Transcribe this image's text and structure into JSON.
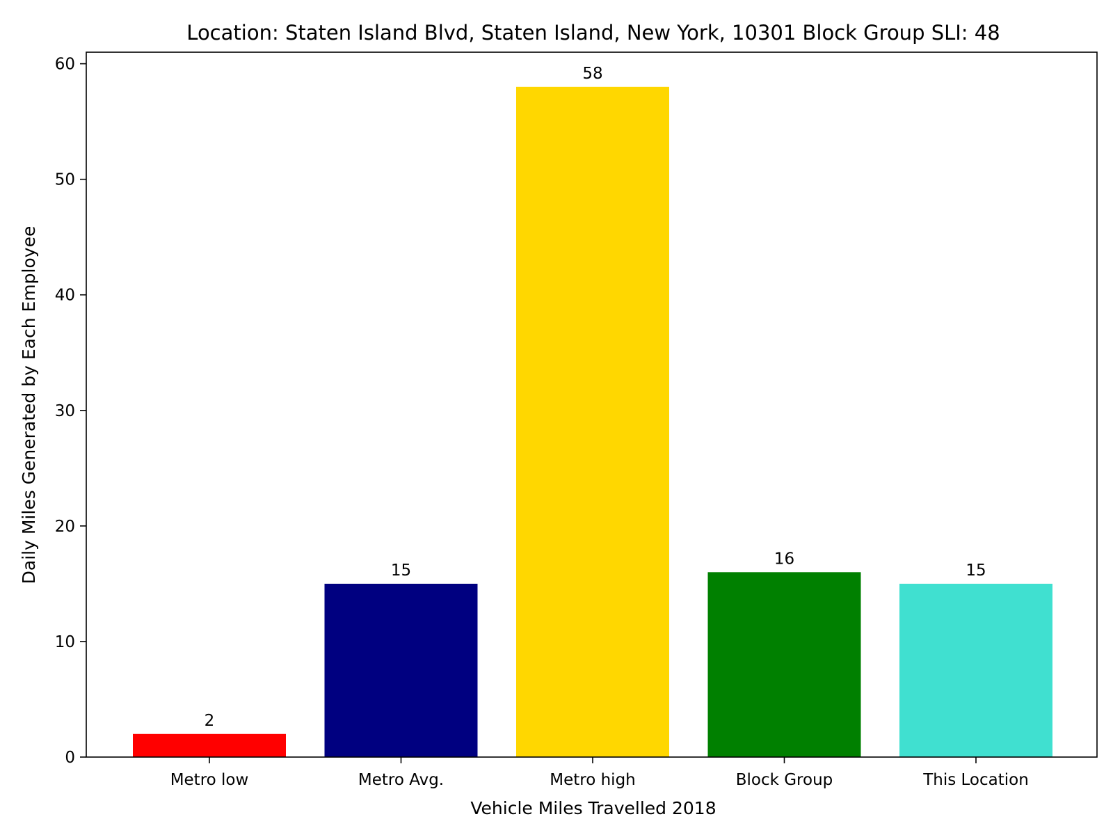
{
  "chart_data": {
    "type": "bar",
    "title": "Location: Staten Island Blvd, Staten Island, New York, 10301 Block Group SLI: 48",
    "xlabel": "Vehicle Miles Travelled 2018",
    "ylabel": "Daily Miles Generated by Each Employee",
    "categories": [
      "Metro low",
      "Metro Avg.",
      "Metro high",
      "Block Group",
      "This Location"
    ],
    "values": [
      2,
      15,
      58,
      16,
      15
    ],
    "value_labels": [
      "2",
      "15",
      "58",
      "16",
      "15"
    ],
    "colors": [
      "#ff0000",
      "#000080",
      "#ffd700",
      "#008000",
      "#40e0d0"
    ],
    "ylim": [
      0,
      61
    ],
    "yticks": [
      0,
      10,
      20,
      30,
      40,
      50,
      60
    ],
    "grid": false,
    "legend": "none"
  }
}
